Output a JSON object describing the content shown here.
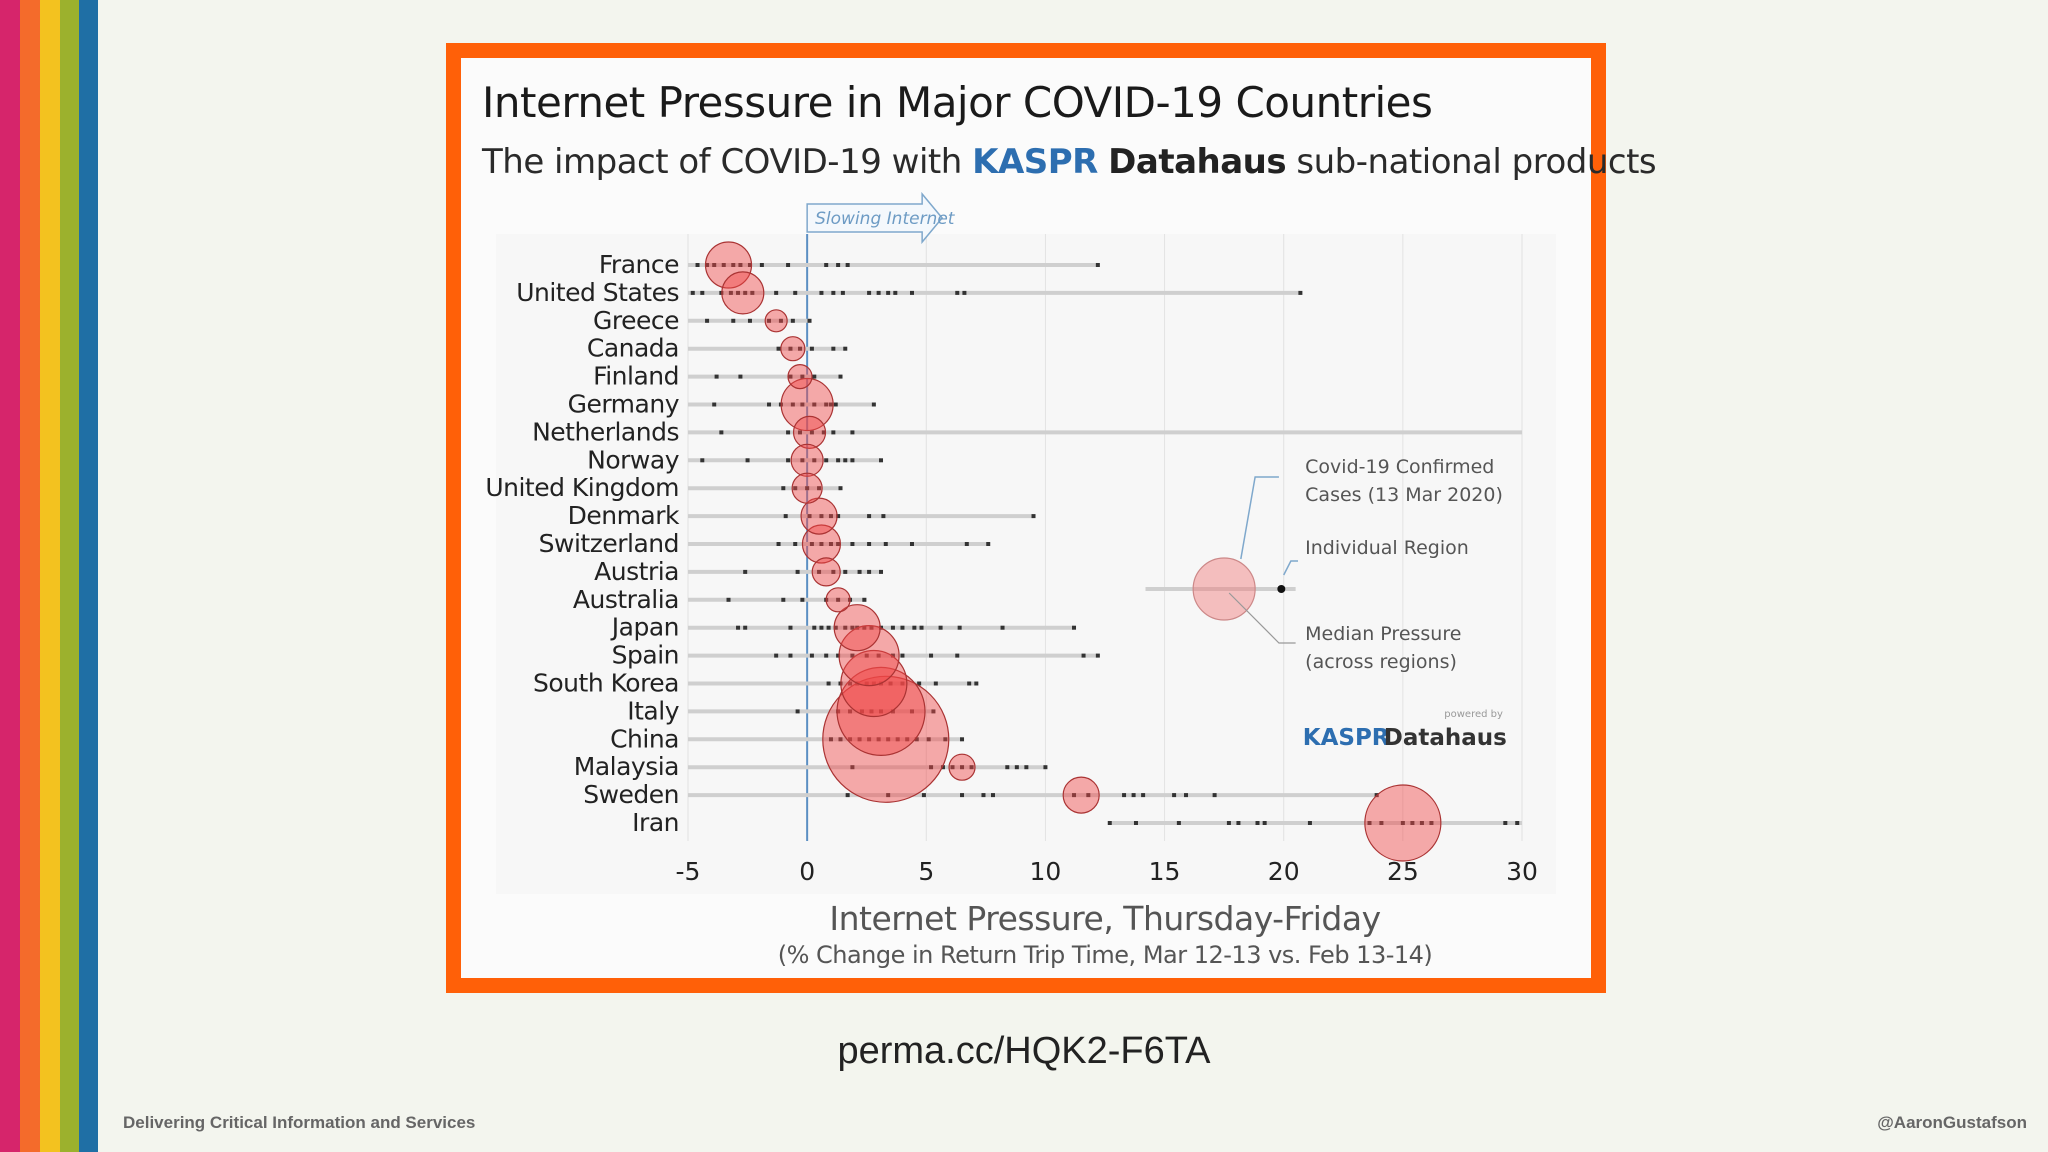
{
  "stripes": [
    "#d6256b",
    "#f46b2b",
    "#f3c21f",
    "#9cb12d",
    "#1f6fa5"
  ],
  "slide": {
    "title": "Internet Pressure in Major COVID-19 Countries",
    "subtitle_prefix": "The impact of COVID-19 with ",
    "subtitle_brand1": "KASPR",
    "subtitle_brand2": "Datahaus",
    "subtitle_suffix": " sub-national products"
  },
  "chart_data": {
    "type": "scatter",
    "title": "Internet Pressure in Major COVID-19 Countries",
    "xlabel": "Internet Pressure, Thursday-Friday",
    "xlabel_sub": "(% Change in Return Trip Time, Mar 12-13 vs. Feb 13-14)",
    "xlim": [
      -5,
      30
    ],
    "xticks": [
      -5,
      0,
      5,
      10,
      15,
      20,
      25,
      30
    ],
    "arrow_label": "Slowing Internet",
    "countries": [
      {
        "name": "France",
        "min": -5,
        "max": 12.2,
        "median": -3.3,
        "size": 23,
        "regions": [
          -4.6,
          -4.2,
          -3.9,
          -3.5,
          -3.1,
          -2.8,
          -2.4,
          -1.9,
          -0.8,
          0.8,
          1.3,
          1.7,
          12.2
        ]
      },
      {
        "name": "United States",
        "min": -5,
        "max": 20.7,
        "median": -2.7,
        "size": 21,
        "regions": [
          -4.8,
          -4.4,
          -3.6,
          -3.2,
          -2.9,
          -2.6,
          -2.3,
          -1.3,
          -0.5,
          0.6,
          1.1,
          1.5,
          2.6,
          3.0,
          3.4,
          3.7,
          4.4,
          6.3,
          6.6,
          20.7
        ]
      },
      {
        "name": "Greece",
        "min": -5,
        "max": 0.1,
        "median": -1.3,
        "size": 11,
        "regions": [
          -4.2,
          -3.1,
          -2.4,
          -1.6,
          -1.1,
          -0.6,
          0.1
        ]
      },
      {
        "name": "Canada",
        "min": -5,
        "max": 1.6,
        "median": -0.6,
        "size": 12,
        "regions": [
          -1.2,
          -0.7,
          -0.3,
          0.2,
          1.1,
          1.6
        ]
      },
      {
        "name": "Finland",
        "min": -5,
        "max": 1.4,
        "median": -0.3,
        "size": 12,
        "regions": [
          -3.8,
          -2.8,
          -0.7,
          -0.2,
          0.3,
          1.4
        ]
      },
      {
        "name": "Germany",
        "min": -5,
        "max": 2.8,
        "median": 0.0,
        "size": 26,
        "regions": [
          -3.9,
          -1.6,
          -1.1,
          -0.6,
          -0.2,
          0.3,
          0.8,
          1.0,
          1.2,
          2.8
        ]
      },
      {
        "name": "Netherlands",
        "min": -5,
        "max": 30,
        "median": 0.1,
        "size": 16,
        "regions": [
          -3.6,
          -0.8,
          -0.3,
          0.2,
          0.7,
          1.1,
          1.9
        ]
      },
      {
        "name": "Norway",
        "min": -5,
        "max": 3.1,
        "median": 0.0,
        "size": 16,
        "regions": [
          -4.4,
          -2.5,
          -0.8,
          -0.2,
          0.3,
          0.8,
          1.3,
          1.6,
          1.9,
          3.1
        ]
      },
      {
        "name": "United Kingdom",
        "min": -5,
        "max": 1.4,
        "median": 0.0,
        "size": 15,
        "regions": [
          -1.0,
          -0.5,
          0.0,
          0.5,
          1.4
        ]
      },
      {
        "name": "Denmark",
        "min": -5,
        "max": 9.5,
        "median": 0.5,
        "size": 18,
        "regions": [
          -0.9,
          0.1,
          0.6,
          1.0,
          1.3,
          2.6,
          3.2,
          9.5
        ]
      },
      {
        "name": "Switzerland",
        "min": -5,
        "max": 7.6,
        "median": 0.6,
        "size": 19,
        "regions": [
          -1.2,
          -0.5,
          0.2,
          0.6,
          1.0,
          1.3,
          1.9,
          2.6,
          3.3,
          4.4,
          6.7,
          7.6
        ]
      },
      {
        "name": "Austria",
        "min": -5,
        "max": 3.1,
        "median": 0.8,
        "size": 14,
        "regions": [
          -2.6,
          -0.4,
          0.5,
          1.1,
          1.6,
          2.2,
          2.6,
          3.1
        ]
      },
      {
        "name": "Australia",
        "min": -5,
        "max": 2.5,
        "median": 1.3,
        "size": 12,
        "regions": [
          -3.3,
          -1.0,
          -0.2,
          0.8,
          1.3,
          1.8,
          2.4
        ]
      },
      {
        "name": "Japan",
        "min": -5,
        "max": 11.2,
        "median": 2.1,
        "size": 23,
        "regions": [
          -2.9,
          -2.6,
          -0.7,
          0.3,
          0.6,
          0.9,
          1.2,
          1.6,
          1.9,
          2.1,
          2.4,
          2.7,
          3.1,
          3.6,
          4.0,
          4.5,
          4.8,
          5.6,
          6.4,
          8.2,
          11.2
        ]
      },
      {
        "name": "Spain",
        "min": -5,
        "max": 12.2,
        "median": 2.6,
        "size": 30,
        "regions": [
          -1.3,
          -0.7,
          0.2,
          0.8,
          1.3,
          1.9,
          2.5,
          3.0,
          3.6,
          4.0,
          5.2,
          6.3,
          11.6,
          12.2
        ]
      },
      {
        "name": "South Korea",
        "min": -5,
        "max": 7.1,
        "median": 2.8,
        "size": 33,
        "regions": [
          0.9,
          1.4,
          1.8,
          2.1,
          2.5,
          2.8,
          3.1,
          3.5,
          4.0,
          4.7,
          5.4,
          6.8,
          7.1
        ]
      },
      {
        "name": "Italy",
        "min": -5,
        "max": 5.3,
        "median": 3.1,
        "size": 44,
        "regions": [
          -0.4,
          1.3,
          1.8,
          2.3,
          2.7,
          3.1,
          3.6,
          4.4,
          5.3
        ]
      },
      {
        "name": "China",
        "min": -5,
        "max": 6.5,
        "median": 3.3,
        "size": 63,
        "regions": [
          1.0,
          1.4,
          1.8,
          2.2,
          2.6,
          3.0,
          3.4,
          3.8,
          4.2,
          4.6,
          5.1,
          5.8,
          6.5
        ]
      },
      {
        "name": "Malaysia",
        "min": -5,
        "max": 10.0,
        "median": 6.5,
        "size": 13,
        "regions": [
          1.9,
          5.2,
          5.7,
          6.1,
          6.5,
          6.9,
          8.4,
          8.8,
          9.2,
          10.0
        ]
      },
      {
        "name": "Sweden",
        "min": -5,
        "max": 24,
        "median": 11.5,
        "size": 18,
        "regions": [
          1.7,
          3.4,
          4.9,
          6.5,
          7.4,
          7.8,
          11.2,
          11.8,
          13.3,
          13.7,
          14.1,
          15.4,
          15.9,
          17.1,
          23.9
        ]
      },
      {
        "name": "Iran",
        "min": 12.7,
        "max": 30,
        "median": 25.0,
        "size": 38,
        "regions": [
          12.7,
          13.8,
          15.6,
          17.7,
          18.1,
          18.9,
          19.2,
          21.1,
          23.6,
          24.1,
          25.0,
          25.4,
          25.8,
          26.2,
          29.3,
          29.8
        ]
      }
    ],
    "legend": {
      "cases_label_1": "Covid-19 Confirmed",
      "cases_label_2": "Cases (13 Mar 2020)",
      "region_label": "Individual Region",
      "median_label_1": "Median Pressure",
      "median_label_2": "(across regions)"
    },
    "brand": {
      "powered_by": "powered by",
      "name1": "KASPR",
      "name2": "Datahaus"
    }
  },
  "caption": "perma.cc/HQK2-F6TA",
  "footer": {
    "left": "Delivering Critical Information and Services",
    "right": "@AaronGustafson"
  }
}
